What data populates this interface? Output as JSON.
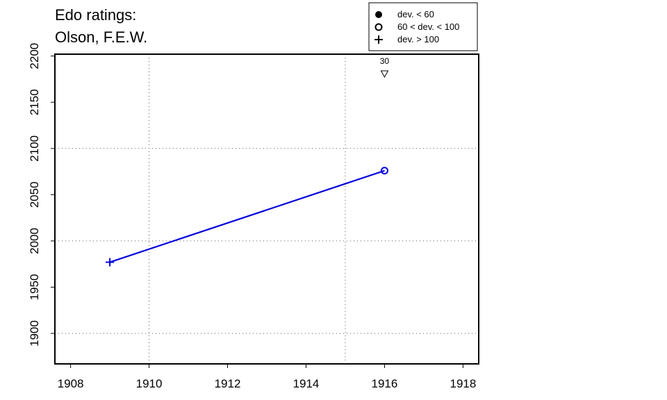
{
  "title": {
    "line1": "Edo ratings:",
    "line2": "Olson, F.E.W."
  },
  "colors": {
    "series": "#0000dd",
    "axis": "#000000",
    "grid": "#555555"
  },
  "legend": {
    "placement": "top-right",
    "items": [
      {
        "label": "dev. < 60",
        "marker": "filled-circle"
      },
      {
        "label": "60 < dev. < 100",
        "marker": "open-circle"
      },
      {
        "label": "dev. > 100",
        "marker": "plus"
      }
    ]
  },
  "chart_data": {
    "type": "line",
    "xlim": [
      1907.6,
      1918.4
    ],
    "ylim": [
      1867,
      2202
    ],
    "x_ticks": [
      1908,
      1910,
      1912,
      1914,
      1916,
      1918
    ],
    "y_ticks": [
      1900,
      1950,
      2000,
      2050,
      2100,
      2150,
      2200
    ],
    "x_grid": [
      1910,
      1915
    ],
    "y_grid": [
      1900,
      2000,
      2100
    ],
    "grid": true,
    "series": [
      {
        "points": [
          {
            "x": 1909,
            "y": 1977,
            "marker": "plus"
          },
          {
            "x": 1916,
            "y": 2076,
            "marker": "open-circle"
          }
        ]
      }
    ],
    "annotations": [
      {
        "x": 1916,
        "y": 2187,
        "label": "30",
        "marker": "down-triangle"
      }
    ]
  }
}
